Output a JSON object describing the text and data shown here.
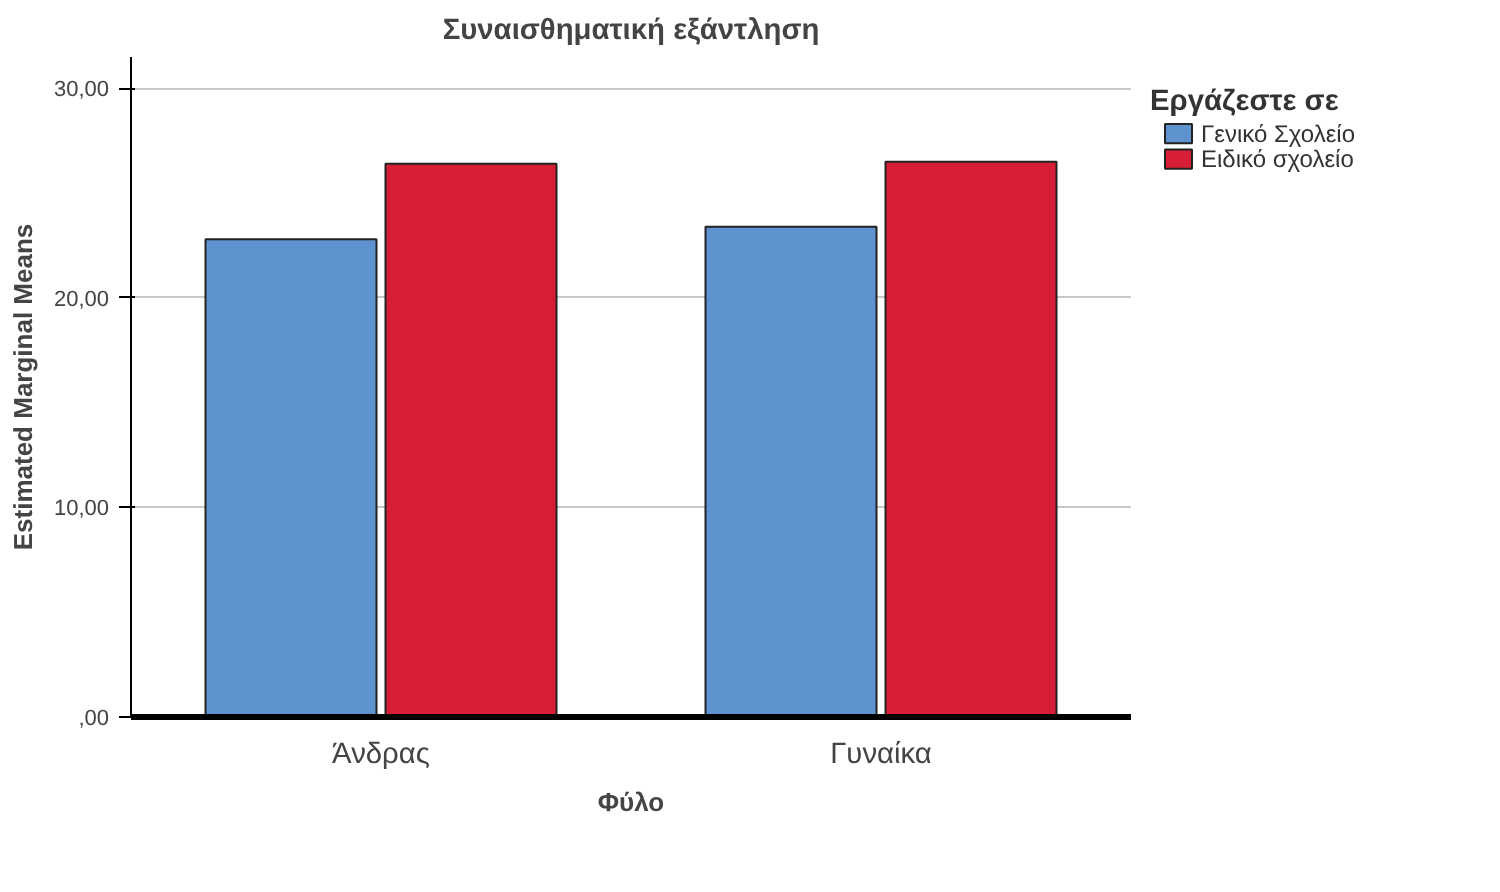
{
  "chart_data": {
    "type": "bar",
    "title": "Συναισθηματική εξάντληση",
    "xlabel": "Φύλο",
    "ylabel": "Estimated Marginal Means",
    "legend_title": "Εργάζεστε σε",
    "categories": [
      "Άνδρας",
      "Γυναίκα"
    ],
    "series": [
      {
        "name": "Γενικό Σχολείο",
        "color": "#5f93cf",
        "values": [
          22.8,
          23.4
        ]
      },
      {
        "name": "Ειδικό σχολείο",
        "color": "#d81e37",
        "values": [
          26.4,
          26.5
        ]
      }
    ],
    "ylim": [
      0,
      31.5
    ],
    "yticks": [
      {
        "value": 0,
        "label": ",00"
      },
      {
        "value": 10,
        "label": "10,00"
      },
      {
        "value": 20,
        "label": "20,00"
      },
      {
        "value": 30,
        "label": "30,00"
      }
    ],
    "grid": "y",
    "legend": "right"
  }
}
